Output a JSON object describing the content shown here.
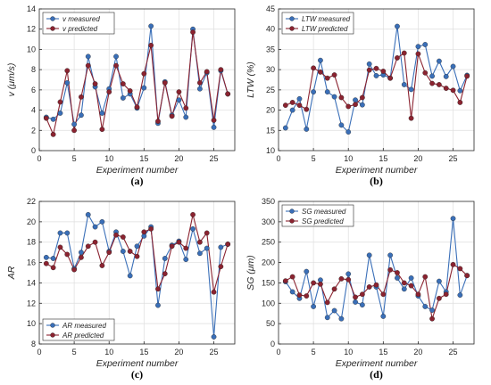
{
  "colors": {
    "measured": "#3a6fb8",
    "predicted": "#8b2330",
    "axis": "#262626",
    "grid": "#dedede"
  },
  "chart_data": [
    {
      "id": "a",
      "type": "line",
      "panel_label": "(a)",
      "xlabel": "Experiment number",
      "ylabel": "v (μm/s)",
      "xlim": [
        0,
        28
      ],
      "ylim": [
        0,
        14
      ],
      "xticks": [
        0,
        5,
        10,
        15,
        20,
        25
      ],
      "yticks": [
        0,
        2,
        4,
        6,
        8,
        10,
        12,
        14
      ],
      "grid": true,
      "legend_position": "top-left",
      "x": [
        1,
        2,
        3,
        4,
        5,
        6,
        7,
        8,
        9,
        10,
        11,
        12,
        13,
        14,
        15,
        16,
        17,
        18,
        19,
        20,
        21,
        22,
        23,
        24,
        25,
        26,
        27
      ],
      "series": [
        {
          "name": "v measured",
          "color_key": "measured",
          "values": [
            3.3,
            3.1,
            3.7,
            6.7,
            2.6,
            3.5,
            9.3,
            6.3,
            3.7,
            6.1,
            9.3,
            5.2,
            5.6,
            4.2,
            6.2,
            12.3,
            2.7,
            6.8,
            3.5,
            5.0,
            3.3,
            12.0,
            6.1,
            7.7,
            2.3,
            7.9,
            5.6
          ]
        },
        {
          "name": "v predicted",
          "color_key": "predicted",
          "values": [
            3.2,
            1.6,
            4.8,
            7.9,
            2.0,
            5.3,
            8.4,
            6.6,
            2.1,
            5.8,
            8.4,
            6.6,
            5.9,
            4.3,
            7.6,
            10.4,
            2.9,
            6.7,
            3.4,
            5.8,
            4.2,
            11.7,
            6.7,
            7.8,
            3.0,
            8.0,
            5.6
          ]
        }
      ]
    },
    {
      "id": "b",
      "type": "line",
      "panel_label": "(b)",
      "xlabel": "Experiment number",
      "ylabel": "LTW (%)",
      "xlim": [
        0,
        28
      ],
      "ylim": [
        10,
        45
      ],
      "xticks": [
        0,
        5,
        10,
        15,
        20,
        25
      ],
      "yticks": [
        10,
        15,
        20,
        25,
        30,
        35,
        40,
        45
      ],
      "grid": true,
      "legend_position": "top-left",
      "x": [
        1,
        2,
        3,
        4,
        5,
        6,
        7,
        8,
        9,
        10,
        11,
        12,
        13,
        14,
        15,
        16,
        17,
        18,
        19,
        20,
        21,
        22,
        23,
        24,
        25,
        26,
        27
      ],
      "series": [
        {
          "name": "LTW measured",
          "color_key": "measured",
          "values": [
            15.6,
            20.0,
            22.8,
            15.3,
            24.5,
            32.3,
            24.5,
            23.3,
            16.3,
            14.6,
            22.5,
            21.3,
            31.4,
            28.5,
            28.7,
            27.9,
            40.7,
            26.3,
            25.1,
            35.7,
            36.2,
            28.4,
            32.1,
            28.3,
            30.8,
            24.8,
            28.6
          ]
        },
        {
          "name": "LTW predicted",
          "color_key": "predicted",
          "values": [
            21.2,
            21.9,
            21.2,
            20.2,
            30.4,
            29.4,
            27.9,
            28.7,
            23.1,
            20.9,
            21.4,
            23.1,
            29.9,
            30.3,
            29.6,
            27.9,
            32.9,
            34.1,
            18.0,
            33.9,
            29.2,
            26.6,
            26.3,
            25.4,
            24.9,
            21.9,
            28.4
          ]
        }
      ]
    },
    {
      "id": "c",
      "type": "line",
      "panel_label": "(c)",
      "xlabel": "Experiment number",
      "ylabel": "AR",
      "xlim": [
        0,
        28
      ],
      "ylim": [
        8,
        22
      ],
      "xticks": [
        0,
        5,
        10,
        15,
        20,
        25
      ],
      "yticks": [
        8,
        10,
        12,
        14,
        16,
        18,
        20,
        22
      ],
      "grid": true,
      "legend_position": "bottom-left",
      "x": [
        1,
        2,
        3,
        4,
        5,
        6,
        7,
        8,
        9,
        10,
        11,
        12,
        13,
        14,
        15,
        16,
        17,
        18,
        19,
        20,
        21,
        22,
        23,
        24,
        25,
        26,
        27
      ],
      "series": [
        {
          "name": "AR measured",
          "color_key": "measured",
          "values": [
            16.5,
            16.4,
            18.9,
            18.9,
            15.4,
            17.0,
            20.7,
            19.5,
            20.0,
            17.1,
            19.0,
            17.1,
            14.7,
            17.6,
            18.6,
            19.5,
            11.8,
            16.4,
            17.7,
            18.1,
            16.3,
            19.3,
            16.9,
            17.4,
            8.7,
            17.5,
            17.8
          ]
        },
        {
          "name": "AR predicted",
          "color_key": "predicted",
          "values": [
            15.9,
            15.5,
            17.5,
            16.8,
            15.3,
            16.5,
            17.6,
            18.0,
            15.7,
            17.0,
            18.7,
            18.5,
            17.1,
            16.6,
            19.0,
            19.3,
            13.4,
            14.9,
            17.6,
            18.0,
            17.4,
            20.7,
            18.0,
            18.9,
            13.1,
            15.6,
            17.8
          ]
        }
      ]
    },
    {
      "id": "d",
      "type": "line",
      "panel_label": "(d)",
      "xlabel": "Experiment number",
      "ylabel": "SG (μm)",
      "xlim": [
        0,
        28
      ],
      "ylim": [
        0,
        350
      ],
      "xticks": [
        0,
        5,
        10,
        15,
        20,
        25
      ],
      "yticks": [
        0,
        50,
        100,
        150,
        200,
        250,
        300,
        350
      ],
      "grid": true,
      "legend_position": "top-left",
      "x": [
        1,
        2,
        3,
        4,
        5,
        6,
        7,
        8,
        9,
        10,
        11,
        12,
        13,
        14,
        15,
        16,
        17,
        18,
        19,
        20,
        21,
        22,
        23,
        24,
        25,
        26,
        27
      ],
      "series": [
        {
          "name": "SG measured",
          "color_key": "measured",
          "values": [
            153,
            128,
            112,
            178,
            92,
            157,
            65,
            82,
            62,
            172,
            103,
            96,
            218,
            140,
            68,
            218,
            162,
            135,
            162,
            118,
            92,
            83,
            154,
            128,
            308,
            120,
            168
          ]
        },
        {
          "name": "SG predicted",
          "color_key": "predicted",
          "values": [
            155,
            165,
            120,
            118,
            150,
            147,
            102,
            135,
            160,
            158,
            115,
            122,
            140,
            145,
            122,
            182,
            175,
            150,
            143,
            122,
            165,
            62,
            112,
            122,
            195,
            185,
            168
          ]
        }
      ]
    }
  ]
}
